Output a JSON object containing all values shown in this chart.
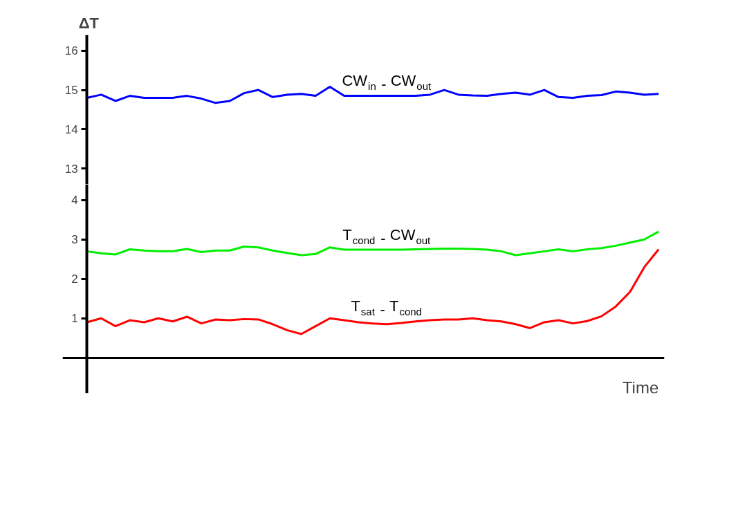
{
  "chart_data": [
    {
      "type": "line",
      "ylabel": "ΔT",
      "categories": [
        null,
        null,
        null,
        null,
        null,
        null,
        null,
        null,
        null,
        null,
        null,
        null,
        null,
        null,
        null,
        null,
        null,
        null,
        null,
        null,
        null,
        null,
        null,
        null,
        null,
        null,
        null,
        null,
        null,
        null,
        null,
        null,
        null,
        null,
        null,
        null,
        null,
        null,
        null,
        null,
        null
      ],
      "ylim": [
        12.6,
        16.4
      ],
      "yticks": [
        13,
        14,
        15,
        16
      ],
      "tick_labels": "y",
      "grid": false,
      "marker": "none",
      "line_style": "solid",
      "series": [
        {
          "name": "CW$_{in}$ - CW$_{out}$",
          "color": "#0000ff",
          "values": [
            14.8,
            14.88,
            14.72,
            14.85,
            14.8,
            14.8,
            14.8,
            14.85,
            14.78,
            14.67,
            14.72,
            14.92,
            15.0,
            14.82,
            14.88,
            14.9,
            14.85,
            15.08,
            14.85,
            14.85,
            14.85,
            14.85,
            14.85,
            14.85,
            14.88,
            15.0,
            14.88,
            14.86,
            14.85,
            14.9,
            14.93,
            14.88,
            15.0,
            14.82,
            14.8,
            14.85,
            14.87,
            14.96,
            14.93,
            14.88,
            14.9
          ]
        }
      ]
    },
    {
      "type": "line",
      "xlabel": "Time",
      "categories": [
        null,
        null,
        null,
        null,
        null,
        null,
        null,
        null,
        null,
        null,
        null,
        null,
        null,
        null,
        null,
        null,
        null,
        null,
        null,
        null,
        null,
        null,
        null,
        null,
        null,
        null,
        null,
        null,
        null,
        null,
        null,
        null,
        null,
        null,
        null,
        null,
        null,
        null,
        null,
        null,
        null
      ],
      "ylim": [
        -0.9,
        4.4
      ],
      "yticks": [
        1,
        2,
        3,
        4
      ],
      "tick_labels": "y",
      "grid": false,
      "marker": "none",
      "line_style": "solid",
      "series": [
        {
          "name": "T$_{cond}$ - CW$_{out}$",
          "color": "#00ee00",
          "values": [
            2.7,
            2.65,
            2.62,
            2.75,
            2.72,
            2.7,
            2.7,
            2.76,
            2.68,
            2.72,
            2.72,
            2.82,
            2.8,
            2.72,
            2.66,
            2.6,
            2.63,
            2.8,
            2.74,
            2.74,
            2.74,
            2.74,
            2.74,
            2.75,
            2.76,
            2.77,
            2.77,
            2.76,
            2.74,
            2.7,
            2.6,
            2.65,
            2.7,
            2.75,
            2.7,
            2.75,
            2.78,
            2.84,
            2.92,
            3.0,
            3.2
          ]
        },
        {
          "name": "T$_{sat}$ - T$_{cond}$",
          "color": "#ff0000",
          "values": [
            0.9,
            1.0,
            0.8,
            0.95,
            0.9,
            1.0,
            0.92,
            1.04,
            0.87,
            0.97,
            0.95,
            0.98,
            0.97,
            0.85,
            0.7,
            0.6,
            0.8,
            1.0,
            0.95,
            0.9,
            0.87,
            0.85,
            0.88,
            0.92,
            0.95,
            0.97,
            0.97,
            1.0,
            0.95,
            0.92,
            0.85,
            0.75,
            0.9,
            0.95,
            0.87,
            0.93,
            1.05,
            1.3,
            1.67,
            2.3,
            2.75
          ]
        }
      ]
    }
  ]
}
